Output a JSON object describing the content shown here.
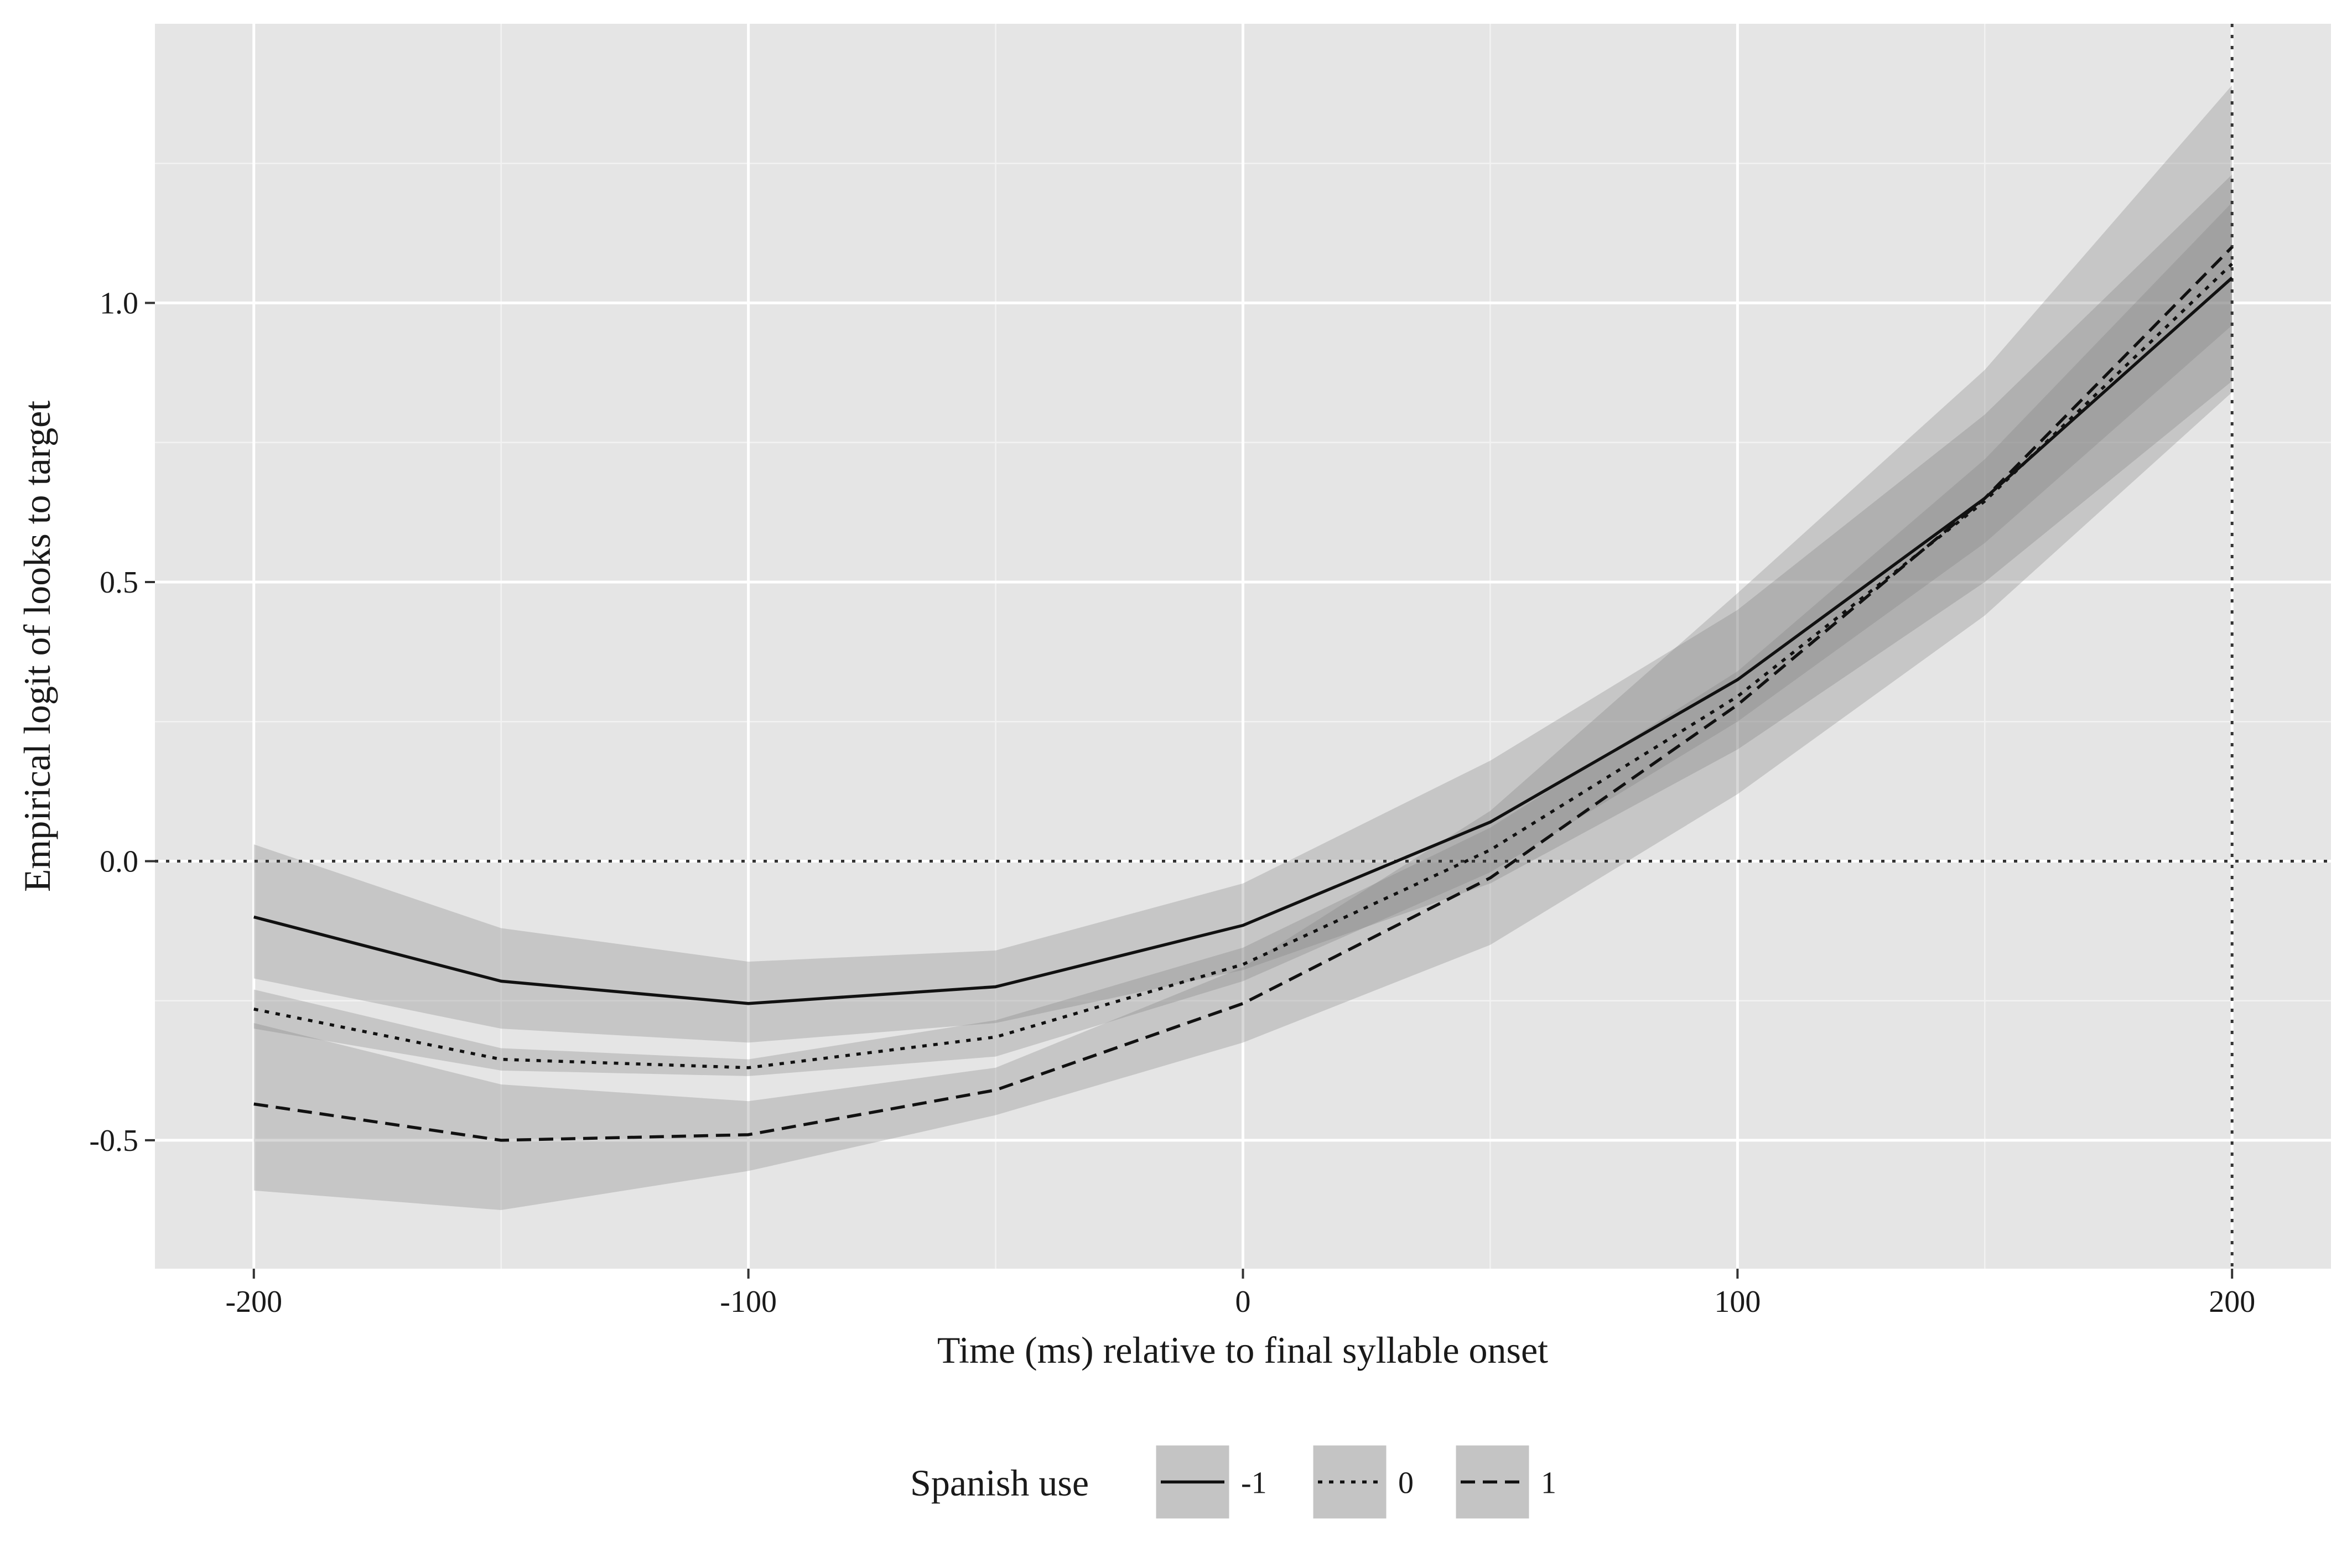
{
  "chart_data": {
    "type": "line",
    "title": "",
    "xlabel": "Time (ms) relative to final syllable onset",
    "ylabel": "Empirical logit of looks to target",
    "x": [
      -200,
      -150,
      -100,
      -50,
      0,
      50,
      100,
      150,
      200
    ],
    "xlim": [
      -220,
      220
    ],
    "ylim": [
      -0.73,
      1.5
    ],
    "x_ticks": [
      -200,
      -100,
      0,
      100,
      200
    ],
    "x_tick_labels": [
      "-200",
      "-100",
      "0",
      "100",
      "200"
    ],
    "y_ticks": [
      -0.5,
      0.0,
      0.5,
      1.0
    ],
    "y_tick_labels": [
      "-0.5",
      "0.0",
      "0.5",
      "1.0"
    ],
    "grid": true,
    "panel_background": "#e5e5e5",
    "grid_color": "#ffffff",
    "band_color": "#7f7f7f",
    "line_color": "#111111",
    "reference_lines": [
      {
        "axis": "y",
        "value": 0.0,
        "style": "dotted"
      },
      {
        "axis": "x",
        "value": 200,
        "style": "dotted"
      }
    ],
    "legend": {
      "title": "Spanish use",
      "position": "bottom",
      "entries": [
        {
          "label": "-1",
          "linestyle": "solid"
        },
        {
          "label": "0",
          "linestyle": "dotted"
        },
        {
          "label": "1",
          "linestyle": "dashed"
        }
      ]
    },
    "series": [
      {
        "name": "-1",
        "linestyle": "solid",
        "values": [
          -0.1,
          -0.215,
          -0.255,
          -0.225,
          -0.115,
          0.07,
          0.325,
          0.65,
          1.045
        ],
        "lower": [
          -0.21,
          -0.3,
          -0.325,
          -0.29,
          -0.195,
          -0.04,
          0.2,
          0.5,
          0.86
        ],
        "upper": [
          0.03,
          -0.12,
          -0.18,
          -0.16,
          -0.04,
          0.18,
          0.45,
          0.8,
          1.23
        ]
      },
      {
        "name": "0",
        "linestyle": "dotted",
        "values": [
          -0.265,
          -0.355,
          -0.37,
          -0.315,
          -0.185,
          0.02,
          0.295,
          0.645,
          1.07
        ],
        "lower": [
          -0.3,
          -0.375,
          -0.385,
          -0.35,
          -0.215,
          -0.02,
          0.25,
          0.57,
          0.96
        ],
        "upper": [
          -0.23,
          -0.335,
          -0.355,
          -0.285,
          -0.155,
          0.06,
          0.34,
          0.72,
          1.18
        ]
      },
      {
        "name": "1",
        "linestyle": "dashed",
        "values": [
          -0.435,
          -0.5,
          -0.49,
          -0.41,
          -0.255,
          -0.03,
          0.28,
          0.65,
          1.1
        ],
        "lower": [
          -0.59,
          -0.625,
          -0.555,
          -0.455,
          -0.325,
          -0.15,
          0.12,
          0.44,
          0.84
        ],
        "upper": [
          -0.29,
          -0.4,
          -0.43,
          -0.37,
          -0.19,
          0.09,
          0.48,
          0.88,
          1.39
        ]
      }
    ]
  }
}
